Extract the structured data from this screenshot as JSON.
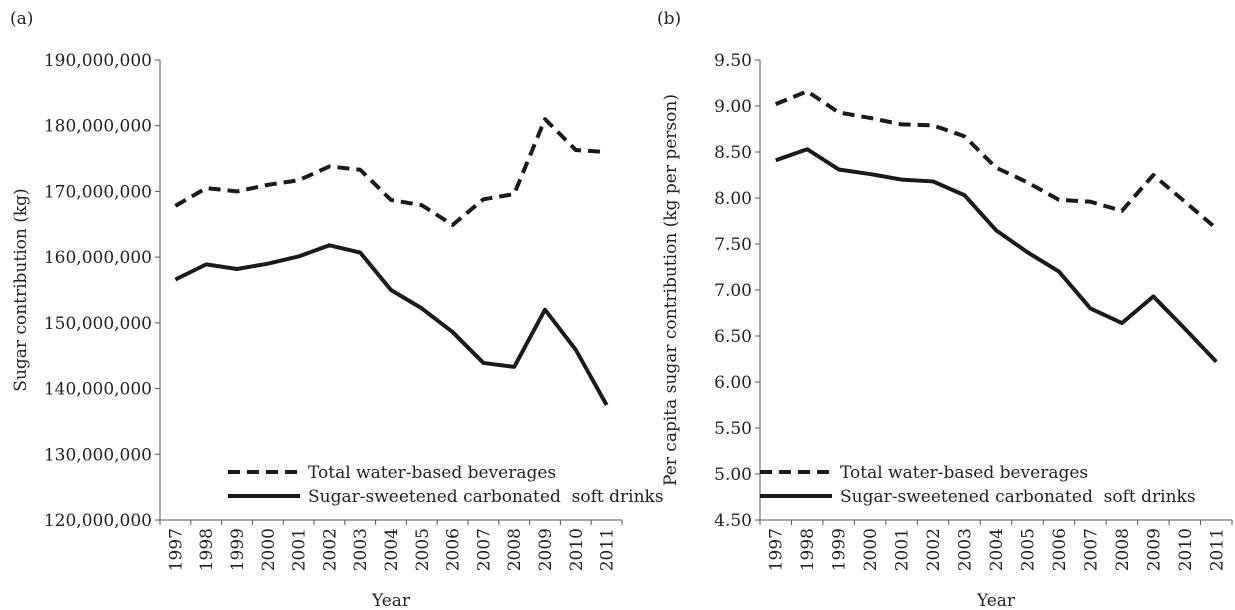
{
  "chart_data": [
    {
      "type": "line",
      "label": "(a)",
      "x_label": "Year",
      "y_label": "Sugar contribution (kg)",
      "categories": [
        "1997",
        "1998",
        "1999",
        "2000",
        "2001",
        "2002",
        "2003",
        "2004",
        "2005",
        "2006",
        "2007",
        "2008",
        "2009",
        "2010",
        "2011"
      ],
      "ylim": [
        120000000,
        190000000
      ],
      "yticks": [
        {
          "value": 120000000,
          "label": "120,000,000"
        },
        {
          "value": 130000000,
          "label": "130,000,000"
        },
        {
          "value": 140000000,
          "label": "140,000,000"
        },
        {
          "value": 150000000,
          "label": "150,000,000"
        },
        {
          "value": 160000000,
          "label": "160,000,000"
        },
        {
          "value": 170000000,
          "label": "170,000,000"
        },
        {
          "value": 180000000,
          "label": "180,000,000"
        },
        {
          "value": 190000000,
          "label": "190,000,000"
        }
      ],
      "legend": "lower center",
      "series": [
        {
          "name": "Total water-based beverages",
          "color": "#1a1a1a",
          "line_style": "dashed",
          "values": [
            167800000,
            170500000,
            170000000,
            171000000,
            171700000,
            173800000,
            173300000,
            168700000,
            167900000,
            164900000,
            168800000,
            169600000,
            181000000,
            176300000,
            176000000
          ]
        },
        {
          "name": "Sugar-sweetened carbonated  soft drinks",
          "color": "#1a1a1a",
          "line_style": "solid",
          "values": [
            156600000,
            158900000,
            158200000,
            159000000,
            160100000,
            161800000,
            160700000,
            155000000,
            152200000,
            148600000,
            143900000,
            143300000,
            152000000,
            145900000,
            137500000
          ]
        }
      ]
    },
    {
      "type": "line",
      "label": "(b)",
      "x_label": "Year",
      "y_label": "Per capita sugar contribution (kg per person)",
      "categories": [
        "1997",
        "1998",
        "1999",
        "2000",
        "2001",
        "2002",
        "2003",
        "2004",
        "2005",
        "2006",
        "2007",
        "2008",
        "2009",
        "2010",
        "2011"
      ],
      "ylim": [
        4.5,
        9.5
      ],
      "yticks": [
        {
          "value": 4.5,
          "label": "4.50"
        },
        {
          "value": 5,
          "label": "5.00"
        },
        {
          "value": 5.5,
          "label": "5.50"
        },
        {
          "value": 6,
          "label": "6.00"
        },
        {
          "value": 6.5,
          "label": "6.50"
        },
        {
          "value": 7,
          "label": "7.00"
        },
        {
          "value": 7.5,
          "label": "7.50"
        },
        {
          "value": 8,
          "label": "8.00"
        },
        {
          "value": 8.5,
          "label": "8.50"
        },
        {
          "value": 9,
          "label": "9.00"
        },
        {
          "value": 9.5,
          "label": "9.50"
        }
      ],
      "legend": "lower left",
      "series": [
        {
          "name": "Total water-based beverages",
          "color": "#1a1a1a",
          "line_style": "dashed",
          "values": [
            9.02,
            9.16,
            8.93,
            8.87,
            8.8,
            8.79,
            8.67,
            8.33,
            8.17,
            7.98,
            7.96,
            7.86,
            8.25,
            7.96,
            7.67
          ]
        },
        {
          "name": "Sugar-sweetened carbonated  soft drinks",
          "color": "#1a1a1a",
          "line_style": "solid",
          "values": [
            8.41,
            8.53,
            8.31,
            8.26,
            8.2,
            8.18,
            8.03,
            7.65,
            7.41,
            7.2,
            6.8,
            6.64,
            6.93,
            6.58,
            6.22
          ]
        }
      ]
    }
  ]
}
